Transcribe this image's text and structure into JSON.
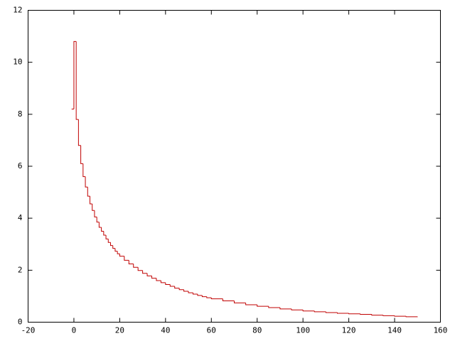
{
  "chart_data": {
    "type": "step",
    "x": [
      -1,
      0,
      1,
      2,
      3,
      4,
      5,
      6,
      7,
      8,
      9,
      10,
      11,
      12,
      13,
      14,
      15,
      16,
      17,
      18,
      19,
      20,
      22,
      24,
      26,
      28,
      30,
      32,
      34,
      36,
      38,
      40,
      42,
      44,
      46,
      48,
      50,
      52,
      54,
      56,
      58,
      60,
      65,
      70,
      75,
      80,
      85,
      90,
      95,
      100,
      105,
      110,
      115,
      120,
      125,
      130,
      135,
      140,
      145,
      150
    ],
    "values": [
      8.2,
      10.8,
      7.8,
      6.8,
      6.1,
      5.6,
      5.2,
      4.85,
      4.55,
      4.3,
      4.05,
      3.85,
      3.65,
      3.5,
      3.35,
      3.2,
      3.07,
      2.95,
      2.84,
      2.73,
      2.63,
      2.54,
      2.38,
      2.24,
      2.11,
      1.99,
      1.88,
      1.78,
      1.69,
      1.6,
      1.52,
      1.45,
      1.38,
      1.31,
      1.25,
      1.19,
      1.13,
      1.08,
      1.03,
      0.98,
      0.94,
      0.9,
      0.82,
      0.74,
      0.67,
      0.61,
      0.56,
      0.51,
      0.47,
      0.43,
      0.4,
      0.37,
      0.34,
      0.32,
      0.3,
      0.27,
      0.25,
      0.23,
      0.21,
      0.2
    ],
    "color": "#c00000",
    "xlim": [
      -20,
      160
    ],
    "xticks": [
      -20,
      0,
      20,
      40,
      60,
      80,
      100,
      120,
      140,
      160
    ],
    "ylim": [
      0,
      12
    ],
    "yticks": [
      0,
      2,
      4,
      6,
      8,
      10,
      12
    ]
  }
}
